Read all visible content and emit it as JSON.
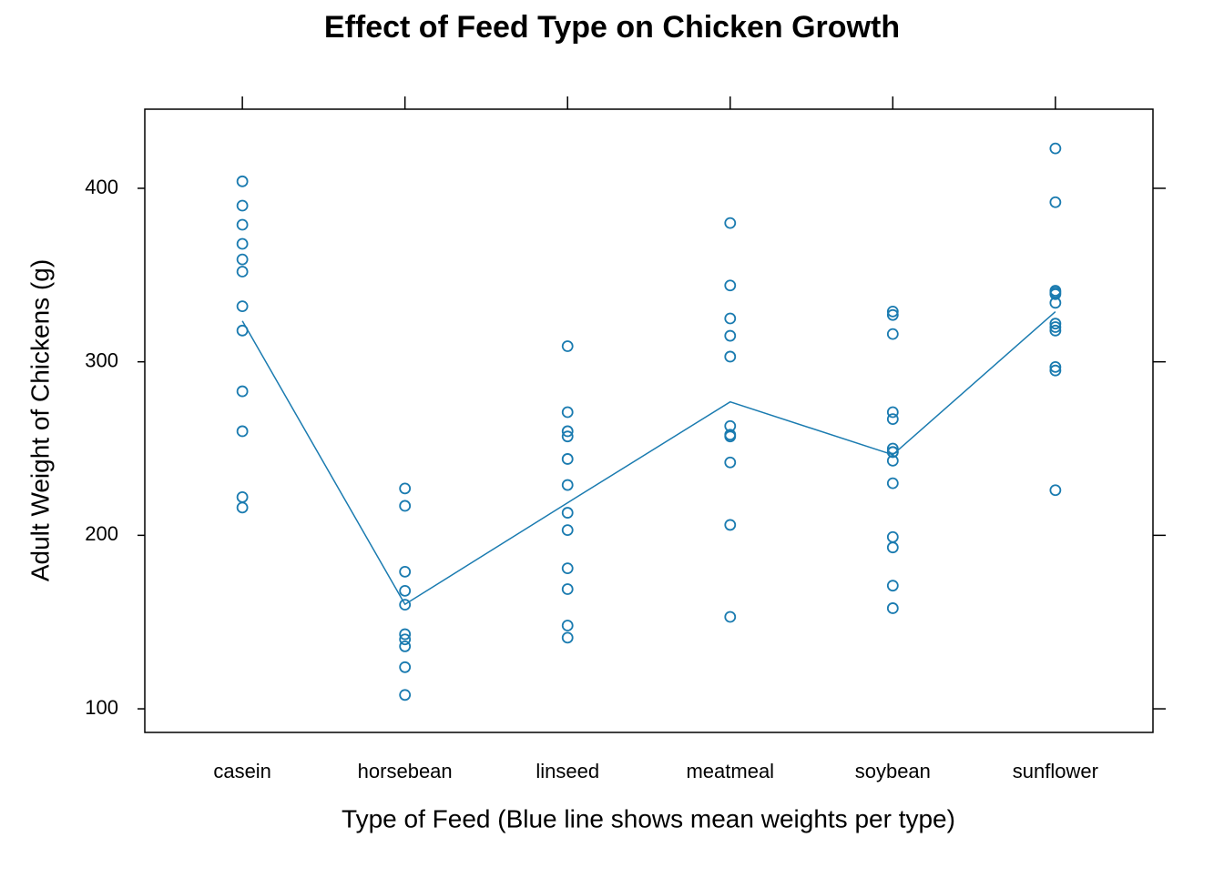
{
  "chart_data": {
    "type": "strip",
    "title": "Effect of Feed Type on Chicken Growth",
    "x_label": "Type of Feed (Blue line shows mean weights per type)",
    "y_label": "Adult Weight of Chickens (g)",
    "categories": [
      "casein",
      "horsebean",
      "linseed",
      "meatmeal",
      "soybean",
      "sunflower"
    ],
    "points": [
      [
        368,
        390,
        379,
        260,
        404,
        318,
        352,
        359,
        216,
        222,
        283,
        332
      ],
      [
        179,
        160,
        136,
        227,
        217,
        168,
        108,
        124,
        143,
        140
      ],
      [
        309,
        229,
        181,
        141,
        260,
        203,
        148,
        169,
        213,
        257,
        244,
        271
      ],
      [
        325,
        257,
        303,
        315,
        380,
        153,
        263,
        242,
        206,
        344,
        258
      ],
      [
        243,
        230,
        248,
        327,
        329,
        250,
        193,
        271,
        316,
        267,
        199,
        171,
        158,
        248
      ],
      [
        423,
        340,
        392,
        339,
        341,
        226,
        320,
        295,
        334,
        322,
        297,
        318
      ]
    ],
    "means": [
      323.58,
      160.2,
      218.75,
      276.91,
      246.43,
      328.92
    ],
    "color": "#1a7bb0",
    "ylim": [
      86.4,
      445.6
    ],
    "yticks": [
      100,
      200,
      300,
      400
    ]
  }
}
